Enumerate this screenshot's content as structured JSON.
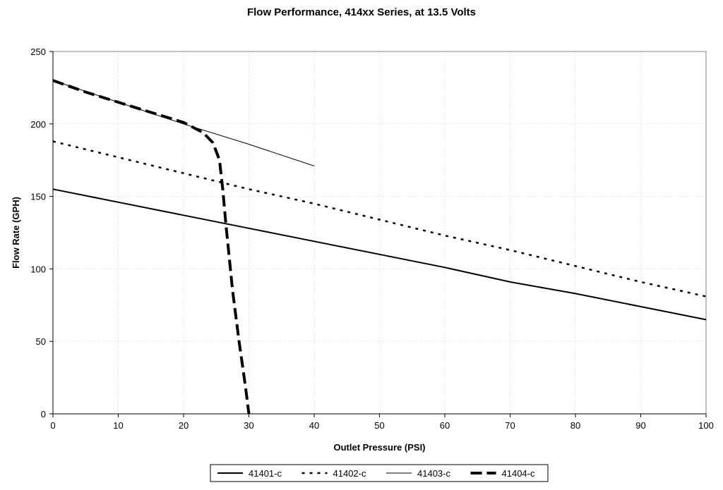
{
  "chart_data": {
    "type": "line",
    "title": "Flow Performance, 414xx  Series, at 13.5 Volts",
    "xlabel": "Outlet Pressure (PSI)",
    "ylabel": "Flow Rate (GPH)",
    "xlim": [
      0,
      100
    ],
    "ylim": [
      0,
      250
    ],
    "x_ticks": [
      "0",
      "10",
      "20",
      "30",
      "40",
      "50",
      "60",
      "70",
      "80",
      "90",
      "100"
    ],
    "y_ticks": [
      "0",
      "50",
      "100",
      "150",
      "200",
      "250"
    ],
    "x_tick_values": [
      0,
      10,
      20,
      30,
      40,
      50,
      60,
      70,
      80,
      90,
      100
    ],
    "y_tick_values": [
      0,
      50,
      100,
      150,
      200,
      250
    ],
    "grid": true,
    "legend_placement": "bottom",
    "series": [
      {
        "name": "41401-c",
        "style": "solid",
        "color": "#000000",
        "x": [
          0,
          10,
          20,
          30,
          40,
          50,
          60,
          70,
          80,
          90,
          100
        ],
        "y": [
          155,
          146,
          137,
          128,
          119,
          110,
          101,
          91,
          83,
          74,
          65
        ]
      },
      {
        "name": "41402-c",
        "style": "dotted",
        "color": "#000000",
        "x": [
          0,
          10,
          20,
          30,
          40,
          50,
          60,
          70,
          80,
          90,
          100
        ],
        "y": [
          188,
          177,
          166,
          155,
          145,
          134,
          123,
          113,
          102,
          91,
          81
        ]
      },
      {
        "name": "41403-c",
        "style": "thin",
        "color": "#000000",
        "x": [
          0,
          10,
          20,
          30,
          40
        ],
        "y": [
          230,
          215,
          200,
          186,
          171
        ]
      },
      {
        "name": "41404-c",
        "style": "thick-dashed",
        "color": "#000000",
        "x": [
          0,
          5,
          10,
          15,
          20,
          23,
          24.5,
          25.5,
          26,
          26.5,
          27.5,
          28.5,
          29.5,
          30
        ],
        "y": [
          230,
          222,
          215,
          208,
          201,
          194,
          187,
          175,
          155,
          130,
          85,
          50,
          18,
          0
        ]
      }
    ]
  }
}
